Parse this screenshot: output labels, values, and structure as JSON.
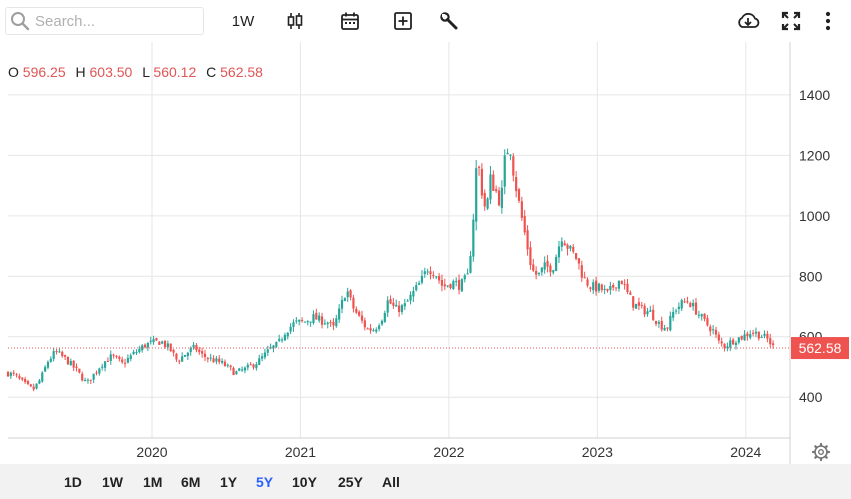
{
  "toolbar": {
    "search_placeholder": "Search...",
    "interval_label": "1W",
    "icons": [
      "candlestick-icon",
      "calendar-icon",
      "add-indicator-icon",
      "wrench-icon",
      "download-icon",
      "fullscreen-icon",
      "more-icon"
    ]
  },
  "ohlc": {
    "o_label": "O",
    "o_value": "596.25",
    "h_label": "H",
    "h_value": "603.50",
    "l_label": "L",
    "l_value": "560.12",
    "c_label": "C",
    "c_value": "562.58"
  },
  "ranges": [
    "1D",
    "1W",
    "1M",
    "6M",
    "1Y",
    "5Y",
    "10Y",
    "25Y",
    "All"
  ],
  "active_range": "5Y",
  "colors": {
    "up": "#26a69a",
    "down": "#ef5350",
    "active_range": "#2962ff",
    "price_label": "#ef5350"
  },
  "chart_data": {
    "type": "candlestick",
    "interval": "weekly",
    "x_tick_labels": [
      "2020",
      "2021",
      "2022",
      "2023",
      "2024"
    ],
    "y_tick_labels": [
      "400",
      "600",
      "800",
      "1000",
      "1200",
      "1400"
    ],
    "ylim": [
      265,
      1575
    ],
    "x_range": [
      2019.03,
      2024.19
    ],
    "grid": true,
    "last_price_label": "562.58",
    "last_price": 562.58,
    "close_series": [
      [
        2019.03,
        480
      ],
      [
        2019.08,
        470
      ],
      [
        2019.15,
        440
      ],
      [
        2019.2,
        425
      ],
      [
        2019.25,
        460
      ],
      [
        2019.3,
        520
      ],
      [
        2019.35,
        550
      ],
      [
        2019.42,
        525
      ],
      [
        2019.48,
        495
      ],
      [
        2019.52,
        470
      ],
      [
        2019.56,
        445
      ],
      [
        2019.6,
        470
      ],
      [
        2019.66,
        510
      ],
      [
        2019.73,
        535
      ],
      [
        2019.8,
        510
      ],
      [
        2019.88,
        545
      ],
      [
        2019.96,
        575
      ],
      [
        2020.06,
        585
      ],
      [
        2020.12,
        560
      ],
      [
        2020.17,
        520
      ],
      [
        2020.23,
        545
      ],
      [
        2020.29,
        565
      ],
      [
        2020.33,
        540
      ],
      [
        2020.4,
        525
      ],
      [
        2020.48,
        510
      ],
      [
        2020.56,
        480
      ],
      [
        2020.64,
        495
      ],
      [
        2020.72,
        520
      ],
      [
        2020.8,
        560
      ],
      [
        2020.85,
        575
      ],
      [
        2020.9,
        620
      ],
      [
        2020.96,
        645
      ],
      [
        2021.03,
        650
      ],
      [
        2021.08,
        665
      ],
      [
        2021.13,
        655
      ],
      [
        2021.18,
        650
      ],
      [
        2021.22,
        625
      ],
      [
        2021.27,
        695
      ],
      [
        2021.31,
        760
      ],
      [
        2021.35,
        700
      ],
      [
        2021.4,
        660
      ],
      [
        2021.45,
        625
      ],
      [
        2021.5,
        625
      ],
      [
        2021.55,
        665
      ],
      [
        2021.59,
        720
      ],
      [
        2021.64,
        690
      ],
      [
        2021.7,
        700
      ],
      [
        2021.76,
        745
      ],
      [
        2021.81,
        780
      ],
      [
        2021.86,
        830
      ],
      [
        2021.91,
        810
      ],
      [
        2021.96,
        765
      ],
      [
        2022.02,
        780
      ],
      [
        2022.08,
        770
      ],
      [
        2022.13,
        800
      ],
      [
        2022.16,
        960
      ],
      [
        2022.19,
        1200
      ],
      [
        2022.22,
        1090
      ],
      [
        2022.25,
        1010
      ],
      [
        2022.28,
        1120
      ],
      [
        2022.31,
        1090
      ],
      [
        2022.35,
        1040
      ],
      [
        2022.38,
        1200
      ],
      [
        2022.41,
        1240
      ],
      [
        2022.44,
        1130
      ],
      [
        2022.48,
        1020
      ],
      [
        2022.52,
        920
      ],
      [
        2022.56,
        820
      ],
      [
        2022.6,
        800
      ],
      [
        2022.64,
        830
      ],
      [
        2022.7,
        830
      ],
      [
        2022.76,
        935
      ],
      [
        2022.81,
        890
      ],
      [
        2022.86,
        860
      ],
      [
        2022.91,
        790
      ],
      [
        2022.96,
        765
      ],
      [
        2023.02,
        760
      ],
      [
        2023.07,
        740
      ],
      [
        2023.12,
        775
      ],
      [
        2023.16,
        790
      ],
      [
        2023.2,
        745
      ],
      [
        2023.24,
        710
      ],
      [
        2023.3,
        690
      ],
      [
        2023.36,
        680
      ],
      [
        2023.42,
        640
      ],
      [
        2023.47,
        630
      ],
      [
        2023.52,
        690
      ],
      [
        2023.57,
        710
      ],
      [
        2023.61,
        720
      ],
      [
        2023.66,
        690
      ],
      [
        2023.72,
        650
      ],
      [
        2023.78,
        620
      ],
      [
        2023.82,
        580
      ],
      [
        2023.86,
        570
      ],
      [
        2023.92,
        590
      ],
      [
        2023.98,
        600
      ],
      [
        2024.04,
        618
      ],
      [
        2024.1,
        605
      ],
      [
        2024.15,
        590
      ],
      [
        2024.19,
        562
      ]
    ]
  }
}
